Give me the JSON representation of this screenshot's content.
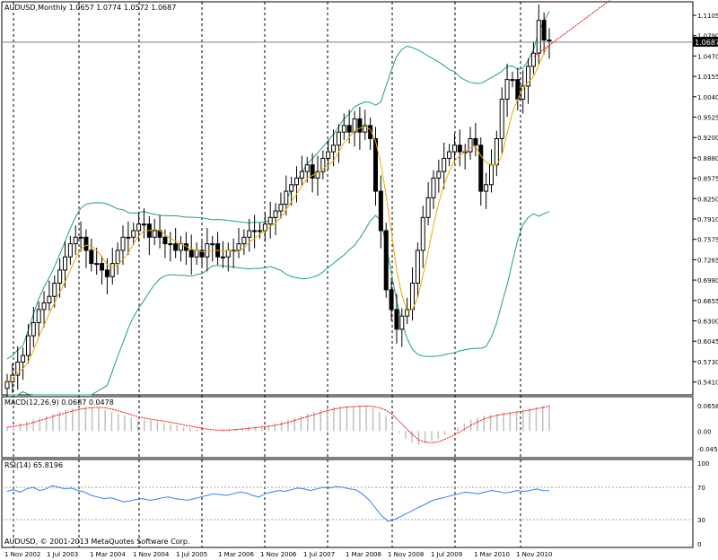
{
  "main": {
    "symbol_info": "AUDUSD,Monthly  1.0657 1.0774 1.0572 1.0687",
    "current_price_label": "1.0687",
    "current_price": 1.0687,
    "price_ticks": [
      "1.1105",
      "1.0790",
      "1.0470",
      "1.0155",
      "1.0040",
      "0.9525",
      "0.9200",
      "0.8880",
      "0.8575",
      "0.8250",
      "0.7910",
      "0.7575",
      "0.7265",
      "0.6980",
      "0.6655",
      "0.6300",
      "0.6045",
      "0.5730",
      "0.5410"
    ],
    "trendline_color": "#ff0000",
    "bollinger_color": "#20a080",
    "ma_color": "#f0a800"
  },
  "macd": {
    "label": "MACD(12,26,9) 0.0687 0.0478",
    "ticks": [
      "0.06583",
      "0.00",
      "-0.04564"
    ],
    "signal_color": "#ff0000",
    "hist_color": "#c0c0c0"
  },
  "rsi": {
    "label": "RSI(14) 65.8196",
    "ticks": [
      "100",
      "70",
      "30",
      "0"
    ],
    "line_color": "#3080ff"
  },
  "copyright": "AUDUSD, © 2001-2013 MetaQuotes Software Corp.",
  "date_labels": [
    "1 Nov 2002",
    "1 Jul 2003",
    "1 Mar 2004",
    "1 Nov 2004",
    "1 Jul 2005",
    "1 Mar 2006",
    "1 Nov 2006",
    "1 Jul 2007",
    "1 Mar 2008",
    "1 Nov 2008",
    "1 Jul 2009",
    "1 Mar 2010",
    "1 Nov 2010"
  ],
  "chart_data": {
    "type": "candlestick",
    "timeframe": "Monthly",
    "symbol": "AUDUSD",
    "ohlc": {
      "open": 1.0657,
      "high": 1.0774,
      "low": 1.0572,
      "close": 1.0687
    },
    "price_range": [
      0.541,
      1.1105
    ],
    "monthly_close_approx": [
      0.55,
      0.56,
      0.58,
      0.59,
      0.62,
      0.64,
      0.66,
      0.67,
      0.68,
      0.7,
      0.72,
      0.74,
      0.76,
      0.77,
      0.77,
      0.75,
      0.73,
      0.73,
      0.72,
      0.71,
      0.73,
      0.75,
      0.77,
      0.77,
      0.78,
      0.79,
      0.79,
      0.77,
      0.78,
      0.77,
      0.76,
      0.76,
      0.75,
      0.76,
      0.75,
      0.74,
      0.75,
      0.74,
      0.76,
      0.76,
      0.74,
      0.74,
      0.75,
      0.75,
      0.76,
      0.77,
      0.78,
      0.78,
      0.78,
      0.79,
      0.8,
      0.81,
      0.82,
      0.84,
      0.85,
      0.86,
      0.87,
      0.88,
      0.86,
      0.87,
      0.89,
      0.9,
      0.91,
      0.93,
      0.94,
      0.93,
      0.95,
      0.93,
      0.94,
      0.92,
      0.84,
      0.78,
      0.69,
      0.66,
      0.63,
      0.65,
      0.66,
      0.7,
      0.75,
      0.8,
      0.83,
      0.86,
      0.87,
      0.89,
      0.9,
      0.91,
      0.9,
      0.9,
      0.92,
      0.91,
      0.84,
      0.85,
      0.88,
      0.92,
      0.98,
      1.01,
      1.01,
      0.98,
      1.0,
      1.03,
      1.05,
      1.1,
      1.07,
      1.0687
    ],
    "macd_hist_approx": [
      0.01,
      0.015,
      0.02,
      0.025,
      0.03,
      0.035,
      0.04,
      0.045,
      0.05,
      0.055,
      0.058,
      0.06,
      0.062,
      0.063,
      0.06,
      0.055,
      0.05,
      0.045,
      0.04,
      0.035,
      0.03,
      0.03,
      0.028,
      0.025,
      0.02,
      0.018,
      0.016,
      0.01,
      0.008,
      0.005,
      0.003,
      0.002,
      0.001,
      0.003,
      0.005,
      0.006,
      0.008,
      0.01,
      0.012,
      0.013,
      0.015,
      0.02,
      0.025,
      0.03,
      0.035,
      0.04,
      0.045,
      0.05,
      0.055,
      0.06,
      0.062,
      0.063,
      0.064,
      0.065,
      0.066,
      0.065,
      0.06,
      0.05,
      0.04,
      0.02,
      -0.005,
      -0.02,
      -0.03,
      -0.035,
      -0.03,
      -0.025,
      -0.02,
      -0.01,
      0.0,
      0.01,
      0.02,
      0.03,
      0.035,
      0.04,
      0.042,
      0.045,
      0.048,
      0.05,
      0.053,
      0.055,
      0.06,
      0.063,
      0.066,
      0.0687
    ],
    "rsi_approx": [
      65,
      67,
      64,
      68,
      70,
      66,
      68,
      72,
      70,
      68,
      69,
      66,
      64,
      60,
      58,
      56,
      57,
      55,
      52,
      53,
      55,
      56,
      54,
      55,
      57,
      58,
      56,
      55,
      54,
      56,
      58,
      60,
      62,
      61,
      60,
      62,
      64,
      63,
      60,
      58,
      62,
      64,
      66,
      65,
      67,
      69,
      68,
      66,
      68,
      70,
      69,
      71,
      70,
      68,
      67,
      62,
      55,
      45,
      35,
      28,
      30,
      34,
      38,
      42,
      46,
      50,
      54,
      56,
      58,
      60,
      62,
      64,
      63,
      62,
      64,
      66,
      65,
      63,
      64,
      66,
      65,
      66,
      68,
      66,
      65.8196
    ],
    "rsi_levels": [
      70,
      30
    ],
    "trendline": true,
    "indicators": [
      "Bollinger Bands",
      "Moving Average",
      "MACD(12,26,9)",
      "RSI(14)"
    ]
  }
}
